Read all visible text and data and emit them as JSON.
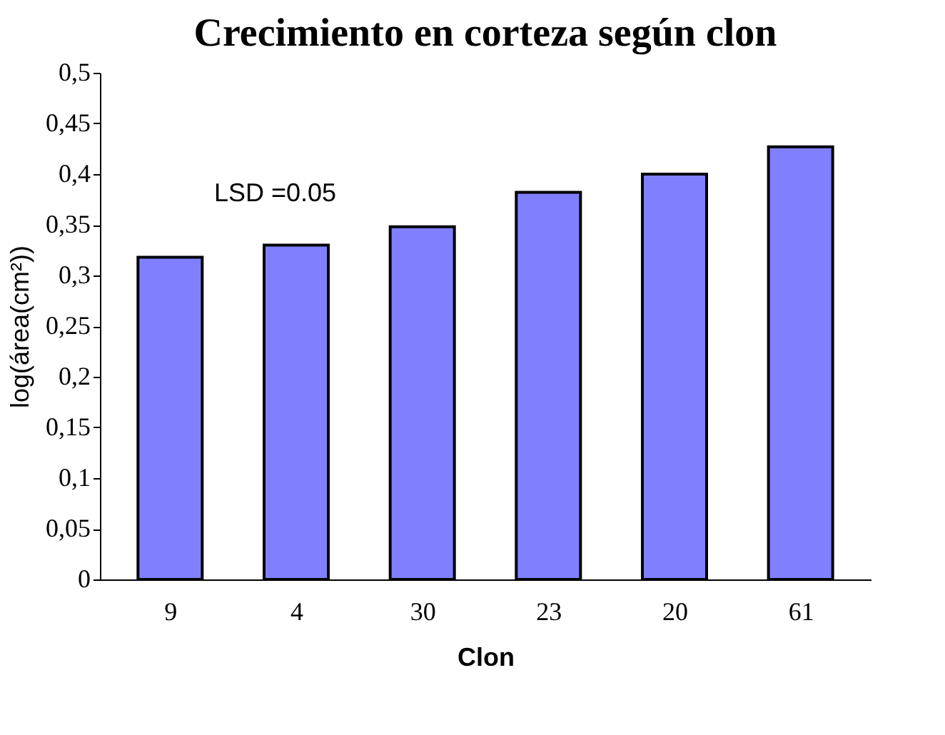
{
  "chart_data": {
    "type": "bar",
    "title": "Crecimiento en corteza según clon",
    "xlabel": "Clon",
    "ylabel": "log(área(cm²))",
    "categories": [
      "9",
      "4",
      "30",
      "23",
      "20",
      "61"
    ],
    "values": [
      0.318,
      0.33,
      0.348,
      0.382,
      0.4,
      0.427
    ],
    "color": "#8080ff",
    "ylim": [
      0,
      0.5
    ],
    "yticks": [
      0,
      {
        "value": 0.05,
        "label": "0,05"
      },
      {
        "value": 0.1,
        "label": "0,1"
      },
      {
        "value": 0.15,
        "label": "0,15"
      },
      {
        "value": 0.2,
        "label": "0,2"
      },
      {
        "value": 0.25,
        "label": "0,25"
      },
      {
        "value": 0.3,
        "label": "0,3"
      },
      {
        "value": 0.35,
        "label": "0,35"
      },
      {
        "value": 0.4,
        "label": "0,4"
      },
      {
        "value": 0.45,
        "label": "0,45"
      },
      {
        "value": 0.5,
        "label": "0,5"
      }
    ],
    "annotations": [
      "LSD =0.05"
    ],
    "grid": false
  }
}
